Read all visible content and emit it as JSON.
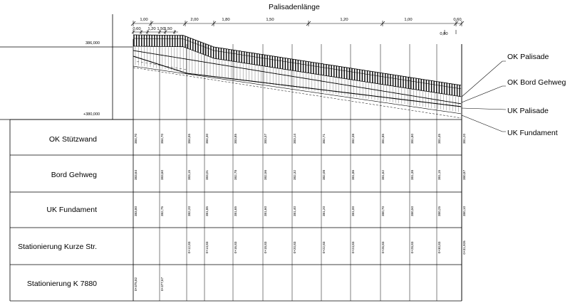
{
  "title": "Palisadenlänge",
  "top_dims": [
    "1,00",
    "2,00",
    "1,80",
    "1,50",
    "1,20",
    "1,00",
    "0,60"
  ],
  "second_dims": [
    "0,60",
    "1,20",
    "1,50",
    "1,50"
  ],
  "right_dim_below": "0,80",
  "elev_upper": "386,000",
  "elev_lower": "+380,000",
  "legend": [
    "OK Palisade",
    "OK Bord Gehweg",
    "UK Palisade",
    "UK Fundament"
  ],
  "rows": [
    {
      "label": "OK Stützwand",
      "values": [
        "384,70",
        "384,70",
        "384,55",
        "384,30",
        "383,85",
        "383,37",
        "383,14",
        "382,71",
        "382,38",
        "381,85",
        "381,80",
        "381,45",
        "381,20"
      ]
    },
    {
      "label": "Bord Gehweg",
      "values": [
        "383,64",
        "383,60",
        "383,15",
        "383,01",
        "382,78",
        "382,56",
        "382,32",
        "382,08",
        "381,86",
        "381,62",
        "381,38",
        "381,15",
        "380,87"
      ]
    },
    {
      "label": "UK Fundament",
      "values": [
        "383,80",
        "382,75",
        "382,20",
        "381,85",
        "381,65",
        "381,60",
        "381,40",
        "381,20",
        "381,00",
        "380,70",
        "380,50",
        "380,25",
        "380,10"
      ]
    },
    {
      "label": "Stationierung Kurze Str.",
      "values": [
        "",
        "",
        "0+12,83",
        "0+14,83",
        "0+16,83",
        "0+18,83",
        "0+20,83",
        "0+22,83",
        "0+24,83",
        "0+26,83",
        "0+28,83",
        "0+30,83",
        "0+31,926"
      ]
    },
    {
      "label": "Stationierung K 7880",
      "values": [
        "0+375,82",
        "0+377,67",
        "",
        "",
        "",
        "",
        "",
        "",
        "",
        "",
        "",
        "",
        ""
      ]
    }
  ]
}
